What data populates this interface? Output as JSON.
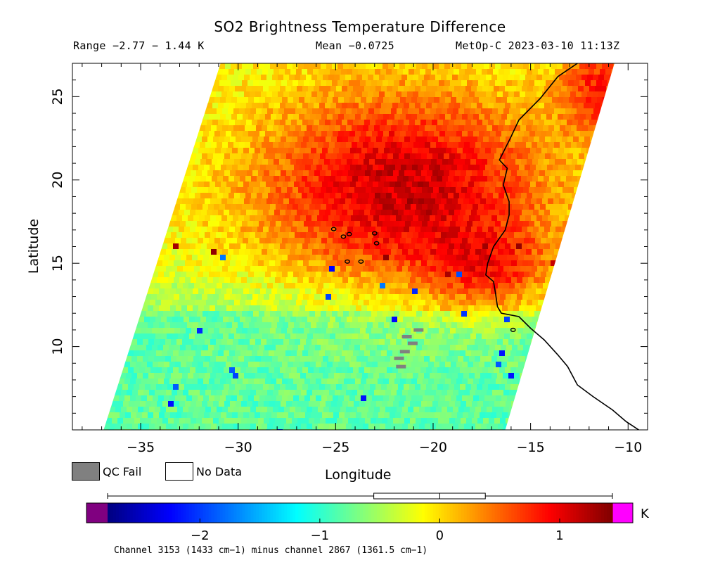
{
  "title": "SO2 Brightness Temperature Difference",
  "subtitle": {
    "range": "Range −2.77 − 1.44 K",
    "mean": "Mean −0.0725",
    "satellite_time": "MetOp-C 2023-03-10 11:13Z"
  },
  "map": {
    "x_axis_label": "Longitude",
    "y_axis_label": "Latitude",
    "lon_range": [
      -38.5,
      -9
    ],
    "lat_range": [
      5,
      27
    ],
    "x_ticks": [
      -35,
      -30,
      -25,
      -20,
      -15,
      -10
    ],
    "x_tick_labels": [
      "−35",
      "−30",
      "−25",
      "−20",
      "−15",
      "−10"
    ],
    "y_ticks": [
      10,
      15,
      20,
      25
    ],
    "y_tick_labels": [
      "10",
      "15",
      "20",
      "25"
    ],
    "swath_corners_lonlat": [
      [
        -36.9,
        5
      ],
      [
        -16.3,
        5
      ],
      [
        -10.7,
        27
      ],
      [
        -30.9,
        27
      ]
    ],
    "coastline_color": "#000000"
  },
  "legend": {
    "qc_fail_label": "QC Fail",
    "qc_fail_color": "#808080",
    "no_data_label": "No Data",
    "no_data_color": "#ffffff"
  },
  "colorbar": {
    "range": [
      -2.77,
      1.44
    ],
    "ticks": [
      -2,
      -1,
      0,
      1
    ],
    "tick_labels": [
      "−2",
      "−1",
      "0",
      "1"
    ],
    "unit": "K",
    "under_color": "#800080",
    "over_color": "#ff00ff",
    "colormap": [
      "#00007f",
      "#0000ff",
      "#007fff",
      "#00ffff",
      "#7fff7f",
      "#ffff00",
      "#ff7f00",
      "#ff0000",
      "#7f0000"
    ],
    "boxplot": {
      "min": -2.77,
      "q1": -0.55,
      "median": 0.0,
      "q3": 0.38,
      "max": 1.44
    },
    "caption": "Channel 3153 (1433 cm−1) minus channel 2867 (1361.5 cm−1)"
  },
  "chart_data": {
    "type": "heatmap",
    "title": "SO2 Brightness Temperature Difference",
    "xlabel": "Longitude",
    "ylabel": "Latitude",
    "xlim": [
      -38.5,
      -9
    ],
    "ylim": [
      5,
      27
    ],
    "value_range": [
      -2.77,
      1.44
    ],
    "mean": -0.0725,
    "unit": "K"
  }
}
